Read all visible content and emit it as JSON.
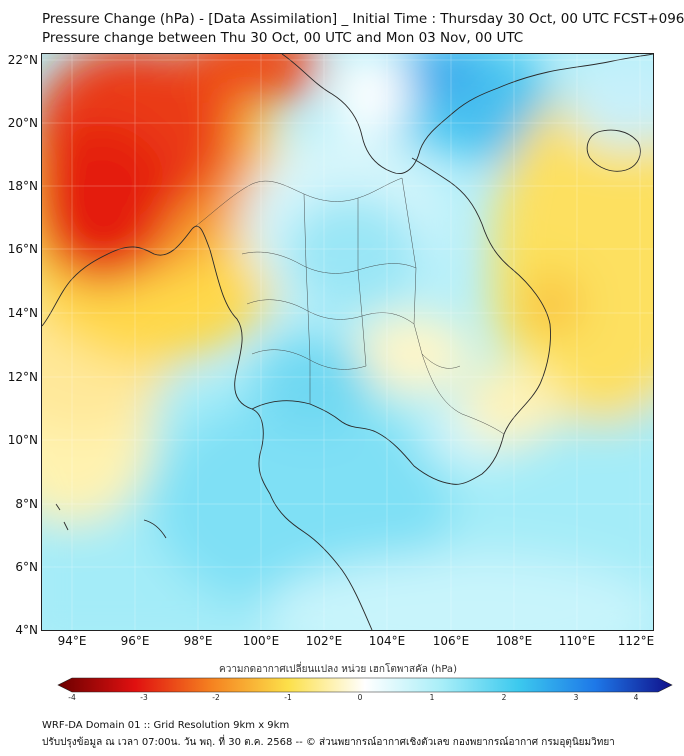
{
  "header": {
    "title_line1": "Pressure Change (hPa) - [Data Assimilation] _ Initial Time : Thursday 30 Oct, 00 UTC FCST+096",
    "title_line2": "Pressure change between Thu 30 Oct, 00 UTC and Mon 03 Nov, 00 UTC"
  },
  "axes": {
    "lat_labels": [
      "22°N",
      "20°N",
      "18°N",
      "16°N",
      "14°N",
      "12°N",
      "10°N",
      "8°N",
      "6°N",
      "4°N"
    ],
    "lon_labels": [
      "94°E",
      "96°E",
      "98°E",
      "100°E",
      "102°E",
      "104°E",
      "106°E",
      "108°E",
      "110°E",
      "112°E"
    ]
  },
  "colorbar": {
    "title": "ความกดอากาศเปลี่ยนแปลง หน่วย เฮกโตพาสคัล (hPa)",
    "tick_labels": [
      "-4",
      "-3",
      "-2",
      "-1",
      "0",
      "1",
      "2",
      "3",
      "4"
    ],
    "range": [
      -4,
      4
    ],
    "colors": {
      "neg4": "#6b0000",
      "neg3": "#e01010",
      "neg2": "#f58220",
      "neg1": "#fce04a",
      "zero": "#ffffff",
      "pos1": "#a8eef8",
      "pos2": "#3cc9ee",
      "pos3": "#1e78e8",
      "pos4": "#10108a"
    }
  },
  "footer": {
    "line1": "WRF-DA Domain 01 :: Grid Resolution 9km x 9km",
    "line2": "ปรับปรุงข้อมูล ณ เวลา 07:00น. วัน พฤ. ที่ 30 ต.ค. 2568 -- © ส่วนพยากรณ์อากาศเชิงตัวเลข กองพยากรณ์อากาศ กรมอุตุนิยมวิทยา"
  }
}
